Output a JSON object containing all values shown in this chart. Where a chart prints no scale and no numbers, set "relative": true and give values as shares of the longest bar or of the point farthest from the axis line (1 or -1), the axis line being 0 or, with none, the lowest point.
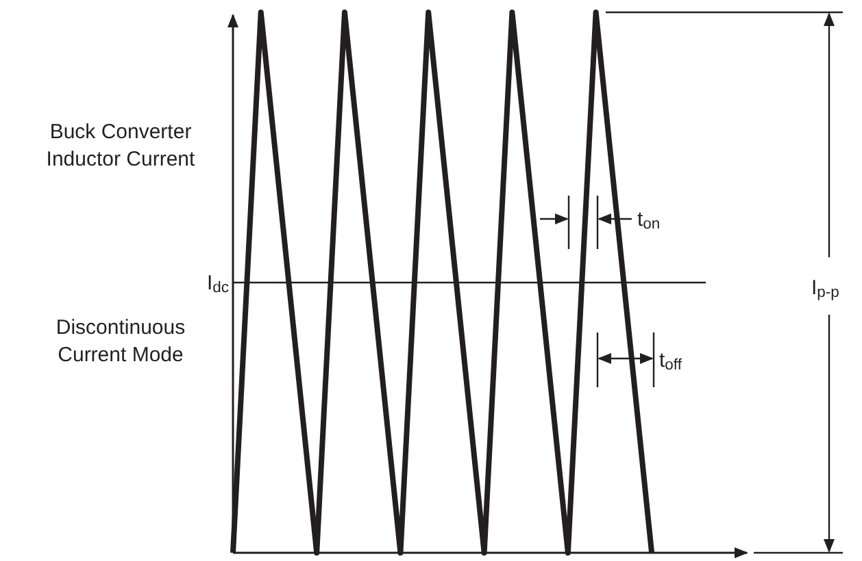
{
  "chart_data": {
    "type": "line",
    "relative": true,
    "marker": "none",
    "line_style": "solid",
    "categories": [
      null,
      null,
      null,
      null,
      null,
      null,
      null,
      null,
      null,
      null,
      null,
      null,
      null,
      null,
      null,
      null
    ],
    "series": [
      {
        "color": "#231f20",
        "values": [
          0,
          1,
          0.5,
          0,
          1,
          0.5,
          0,
          1,
          0.5,
          0,
          1,
          0.5,
          0,
          1,
          0.5,
          0
        ]
      }
    ],
    "ref_lines": [
      {
        "axis": "y",
        "value": 0.5,
        "label": "I$_{dc}$",
        "color": "#231f20"
      }
    ],
    "annotations": [
      "Buck Converter Inductor Current",
      "Discontinuous Current Mode",
      "t$_{on}$",
      "t$_{off}$",
      "I$_{p-p}$"
    ]
  }
}
